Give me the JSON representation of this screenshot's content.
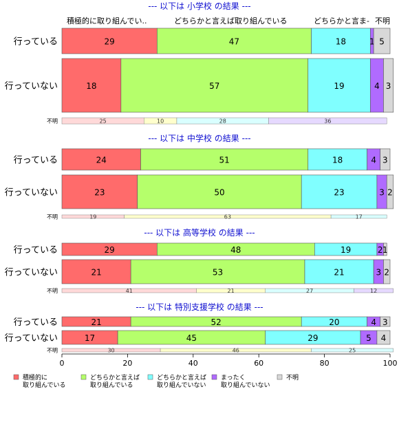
{
  "chart_data": {
    "type": "bar",
    "stacked": true,
    "orientation": "horizontal",
    "xlim": [
      0,
      100
    ],
    "xticks": [
      0,
      20,
      40,
      60,
      80,
      100
    ],
    "colors": {
      "strong": "#ff6b6b",
      "somewhat": "#b5ff6b",
      "somewhat_not": "#80ffff",
      "not_at_all": "#b06bff",
      "unknown": "#d8d8d8"
    },
    "top_labels": [
      "積極的に取り組んでい..",
      "どちらかと言えば取り組んでいる",
      "どちらかと言ま-",
      "不明"
    ],
    "legend": [
      {
        "key": "strong",
        "label": "積極的に\n取り組んでいる"
      },
      {
        "key": "somewhat",
        "label": "どちらかと言えば\n取り組んでいる"
      },
      {
        "key": "somewhat_not",
        "label": "どちらかと言えば\n取り組んでいない"
      },
      {
        "key": "not_at_all",
        "label": "まったく\n取り組んでいない"
      },
      {
        "key": "unknown",
        "label": "不明"
      }
    ],
    "panels": [
      {
        "title": "--- 以下は 小学校 の結果 ---",
        "rows": [
          {
            "label": "行っている",
            "values": [
              29,
              47,
              18,
              1,
              5
            ]
          },
          {
            "label": "行っていない",
            "values": [
              18,
              57,
              19,
              4,
              3
            ]
          }
        ],
        "unknown_row": {
          "label": "不明",
          "values": [
            25,
            10,
            28,
            36
          ]
        }
      },
      {
        "title": "--- 以下は 中学校 の結果 ---",
        "rows": [
          {
            "label": "行っている",
            "values": [
              24,
              51,
              18,
              4,
              3
            ]
          },
          {
            "label": "行っていない",
            "values": [
              23,
              50,
              23,
              3,
              2
            ]
          }
        ],
        "unknown_row": {
          "label": "不明",
          "values": [
            19,
            63,
            17
          ]
        }
      },
      {
        "title": "--- 以下は 高等学校 の結果 ---",
        "rows": [
          {
            "label": "行っている",
            "values": [
              29,
              48,
              19,
              2,
              1
            ]
          },
          {
            "label": "行っていない",
            "values": [
              21,
              53,
              21,
              3,
              2
            ]
          }
        ],
        "unknown_row": {
          "label": "不明",
          "values": [
            41,
            21,
            27,
            12
          ]
        }
      },
      {
        "title": "--- 以下は 特別支援学校 の結果 ---",
        "rows": [
          {
            "label": "行っている",
            "values": [
              21,
              52,
              20,
              4,
              3
            ]
          },
          {
            "label": "行っていない",
            "values": [
              17,
              45,
              29,
              5,
              4
            ]
          }
        ],
        "unknown_row": {
          "label": "不明",
          "values": [
            30,
            46,
            25
          ]
        }
      }
    ]
  }
}
